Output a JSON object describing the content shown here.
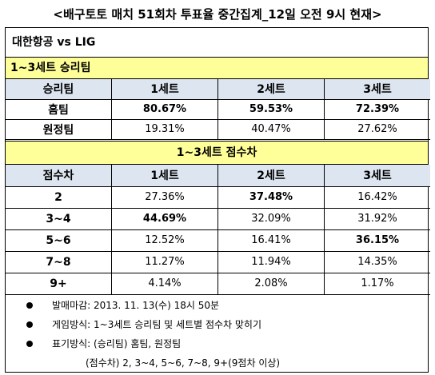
{
  "page_title": "<배구토토 매치 51회차 투표율 중간집계_12일 오전 9시 현재>",
  "match_title": "대한항공 vs LIG",
  "section1": {
    "title": "1~3세트 승리팀",
    "headers": [
      "승리팀",
      "1세트",
      "2세트",
      "3세트"
    ],
    "rows": [
      {
        "label": "홈팀",
        "values": [
          "80.67%",
          "59.53%",
          "72.39%"
        ]
      },
      {
        "label": "원정팀",
        "values": [
          "19.31%",
          "40.47%",
          "27.62%"
        ]
      }
    ]
  },
  "section2": {
    "title": "1~3세트 점수차",
    "headers": [
      "점수차",
      "1세트",
      "2세트",
      "3세트"
    ],
    "rows": [
      {
        "label": "2",
        "values": [
          "27.36%",
          "37.48%",
          "16.42%"
        ]
      },
      {
        "label": "3~4",
        "values": [
          "44.69%",
          "32.09%",
          "31.92%"
        ]
      },
      {
        "label": "5~6",
        "values": [
          "12.52%",
          "16.41%",
          "36.15%"
        ]
      },
      {
        "label": "7~8",
        "values": [
          "11.27%",
          "11.94%",
          "14.35%"
        ]
      },
      {
        "label": "9+",
        "values": [
          "4.14%",
          "2.08%",
          "1.17%"
        ]
      }
    ]
  },
  "notes": [
    "발매마감: 2013. 11. 13(수) 18시 50분",
    "게임방식: 1~3세트 승리팀 및 세트별 점수차 맞히기",
    "표기방식: (승리팀) 홈팀, 원정팀"
  ],
  "note_sub": "(점수차) 2, 3~4, 5~6, 7~8, 9+(9점차 이상)"
}
